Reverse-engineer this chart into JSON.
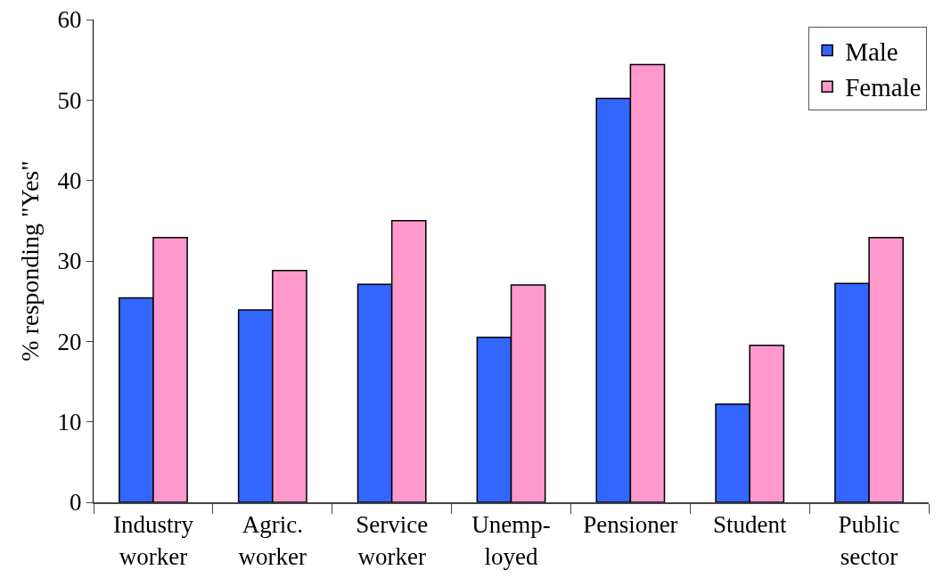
{
  "chart_data": {
    "type": "bar",
    "ylabel": "% responding \"Yes\"",
    "categories": [
      "Industry\nworker",
      "Agric.\nworker",
      "Service\nworker",
      "Unemp-\nloyed",
      "Pensioner",
      "Student",
      "Public\nsector"
    ],
    "series": [
      {
        "name": "Male",
        "color": "#3366ff",
        "values": [
          25.4,
          23.9,
          27.1,
          20.5,
          50.2,
          12.2,
          27.2
        ]
      },
      {
        "name": "Female",
        "color": "#ff99cc",
        "values": [
          32.9,
          28.8,
          35.0,
          27.0,
          54.4,
          19.5,
          32.9
        ]
      }
    ],
    "ylim": [
      0,
      60
    ],
    "yticks": [
      0,
      10,
      20,
      30,
      40,
      50,
      60
    ],
    "grid": false,
    "legend": "top right"
  }
}
